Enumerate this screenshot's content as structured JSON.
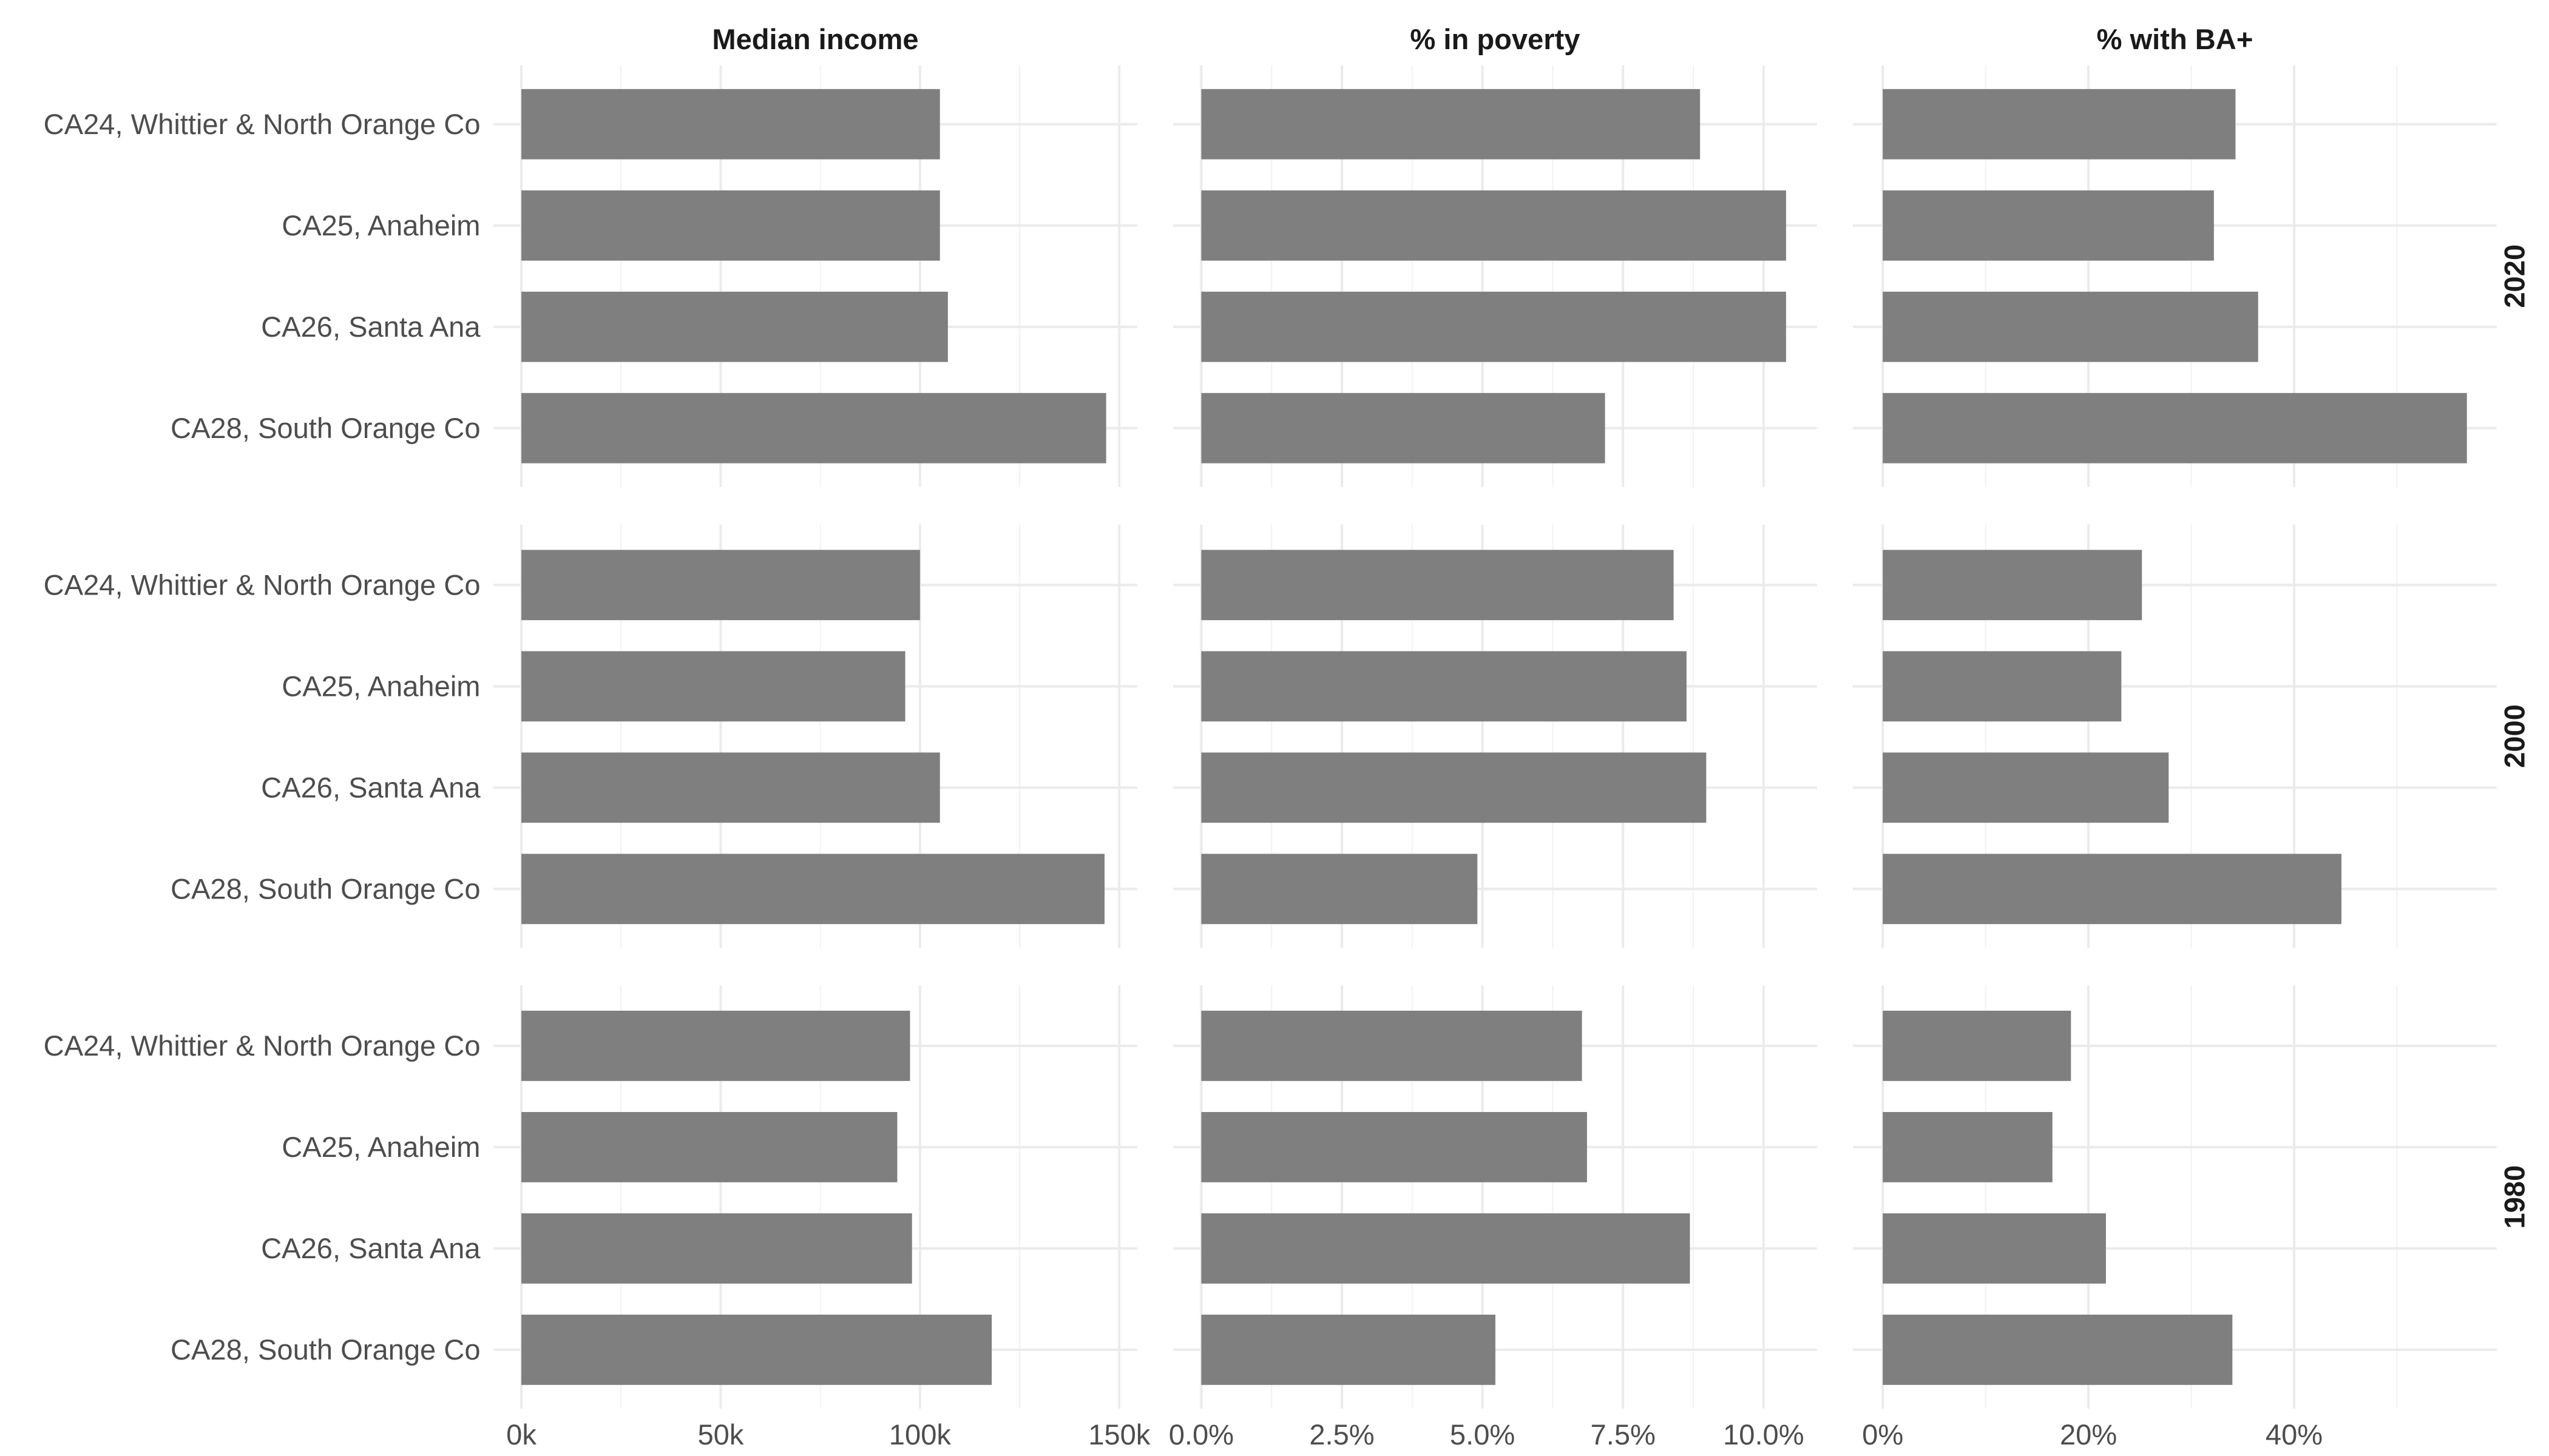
{
  "chart_data": {
    "type": "bar",
    "orientation": "horizontal",
    "categories": [
      "CA24, Whittier & North Orange Co",
      "CA25, Anaheim",
      "CA26, Santa Ana",
      "CA28, South Orange Co"
    ],
    "rows": [
      "2020",
      "2000",
      "1980"
    ],
    "bar_color": "#7f7f7f",
    "grid": true,
    "panels": [
      {
        "title": "Median income",
        "unit": "thousands USD",
        "xlim": [
          -7,
          154.5
        ],
        "ticks": [
          0,
          50,
          100,
          150
        ],
        "tick_labels": [
          "0k",
          "50k",
          "100k",
          "150k"
        ],
        "minor": [
          25,
          75,
          125
        ],
        "values": {
          "2020": [
            105,
            105,
            107,
            146.7
          ],
          "2000": [
            100,
            96.3,
            105,
            146.3
          ],
          "1980": [
            97.5,
            94.3,
            98,
            118
          ]
        }
      },
      {
        "title": "% in poverty",
        "unit": "percent",
        "xlim": [
          -0.5,
          10.95
        ],
        "ticks": [
          0,
          2.5,
          5,
          7.5,
          10
        ],
        "tick_labels": [
          "0.0%",
          "2.5%",
          "5.0%",
          "7.5%",
          "10.0%"
        ],
        "minor": [
          1.25,
          3.75,
          6.25,
          8.75
        ],
        "values": {
          "2020": [
            8.87,
            10.4,
            10.4,
            7.18
          ],
          "2000": [
            8.4,
            8.63,
            8.98,
            4.91
          ],
          "1980": [
            6.77,
            6.86,
            8.69,
            5.23
          ]
        }
      },
      {
        "title": "% with BA+",
        "unit": "percent",
        "xlim": [
          -2.9,
          59.7
        ],
        "ticks": [
          0,
          20,
          40
        ],
        "tick_labels": [
          "0%",
          "20%",
          "40%"
        ],
        "minor": [
          10,
          30,
          50
        ],
        "values": {
          "2020": [
            34.3,
            32.2,
            36.5,
            56.8
          ],
          "2000": [
            25.2,
            23.2,
            27.8,
            44.6
          ],
          "1980": [
            18.3,
            16.5,
            21.7,
            34.0
          ]
        }
      }
    ]
  }
}
